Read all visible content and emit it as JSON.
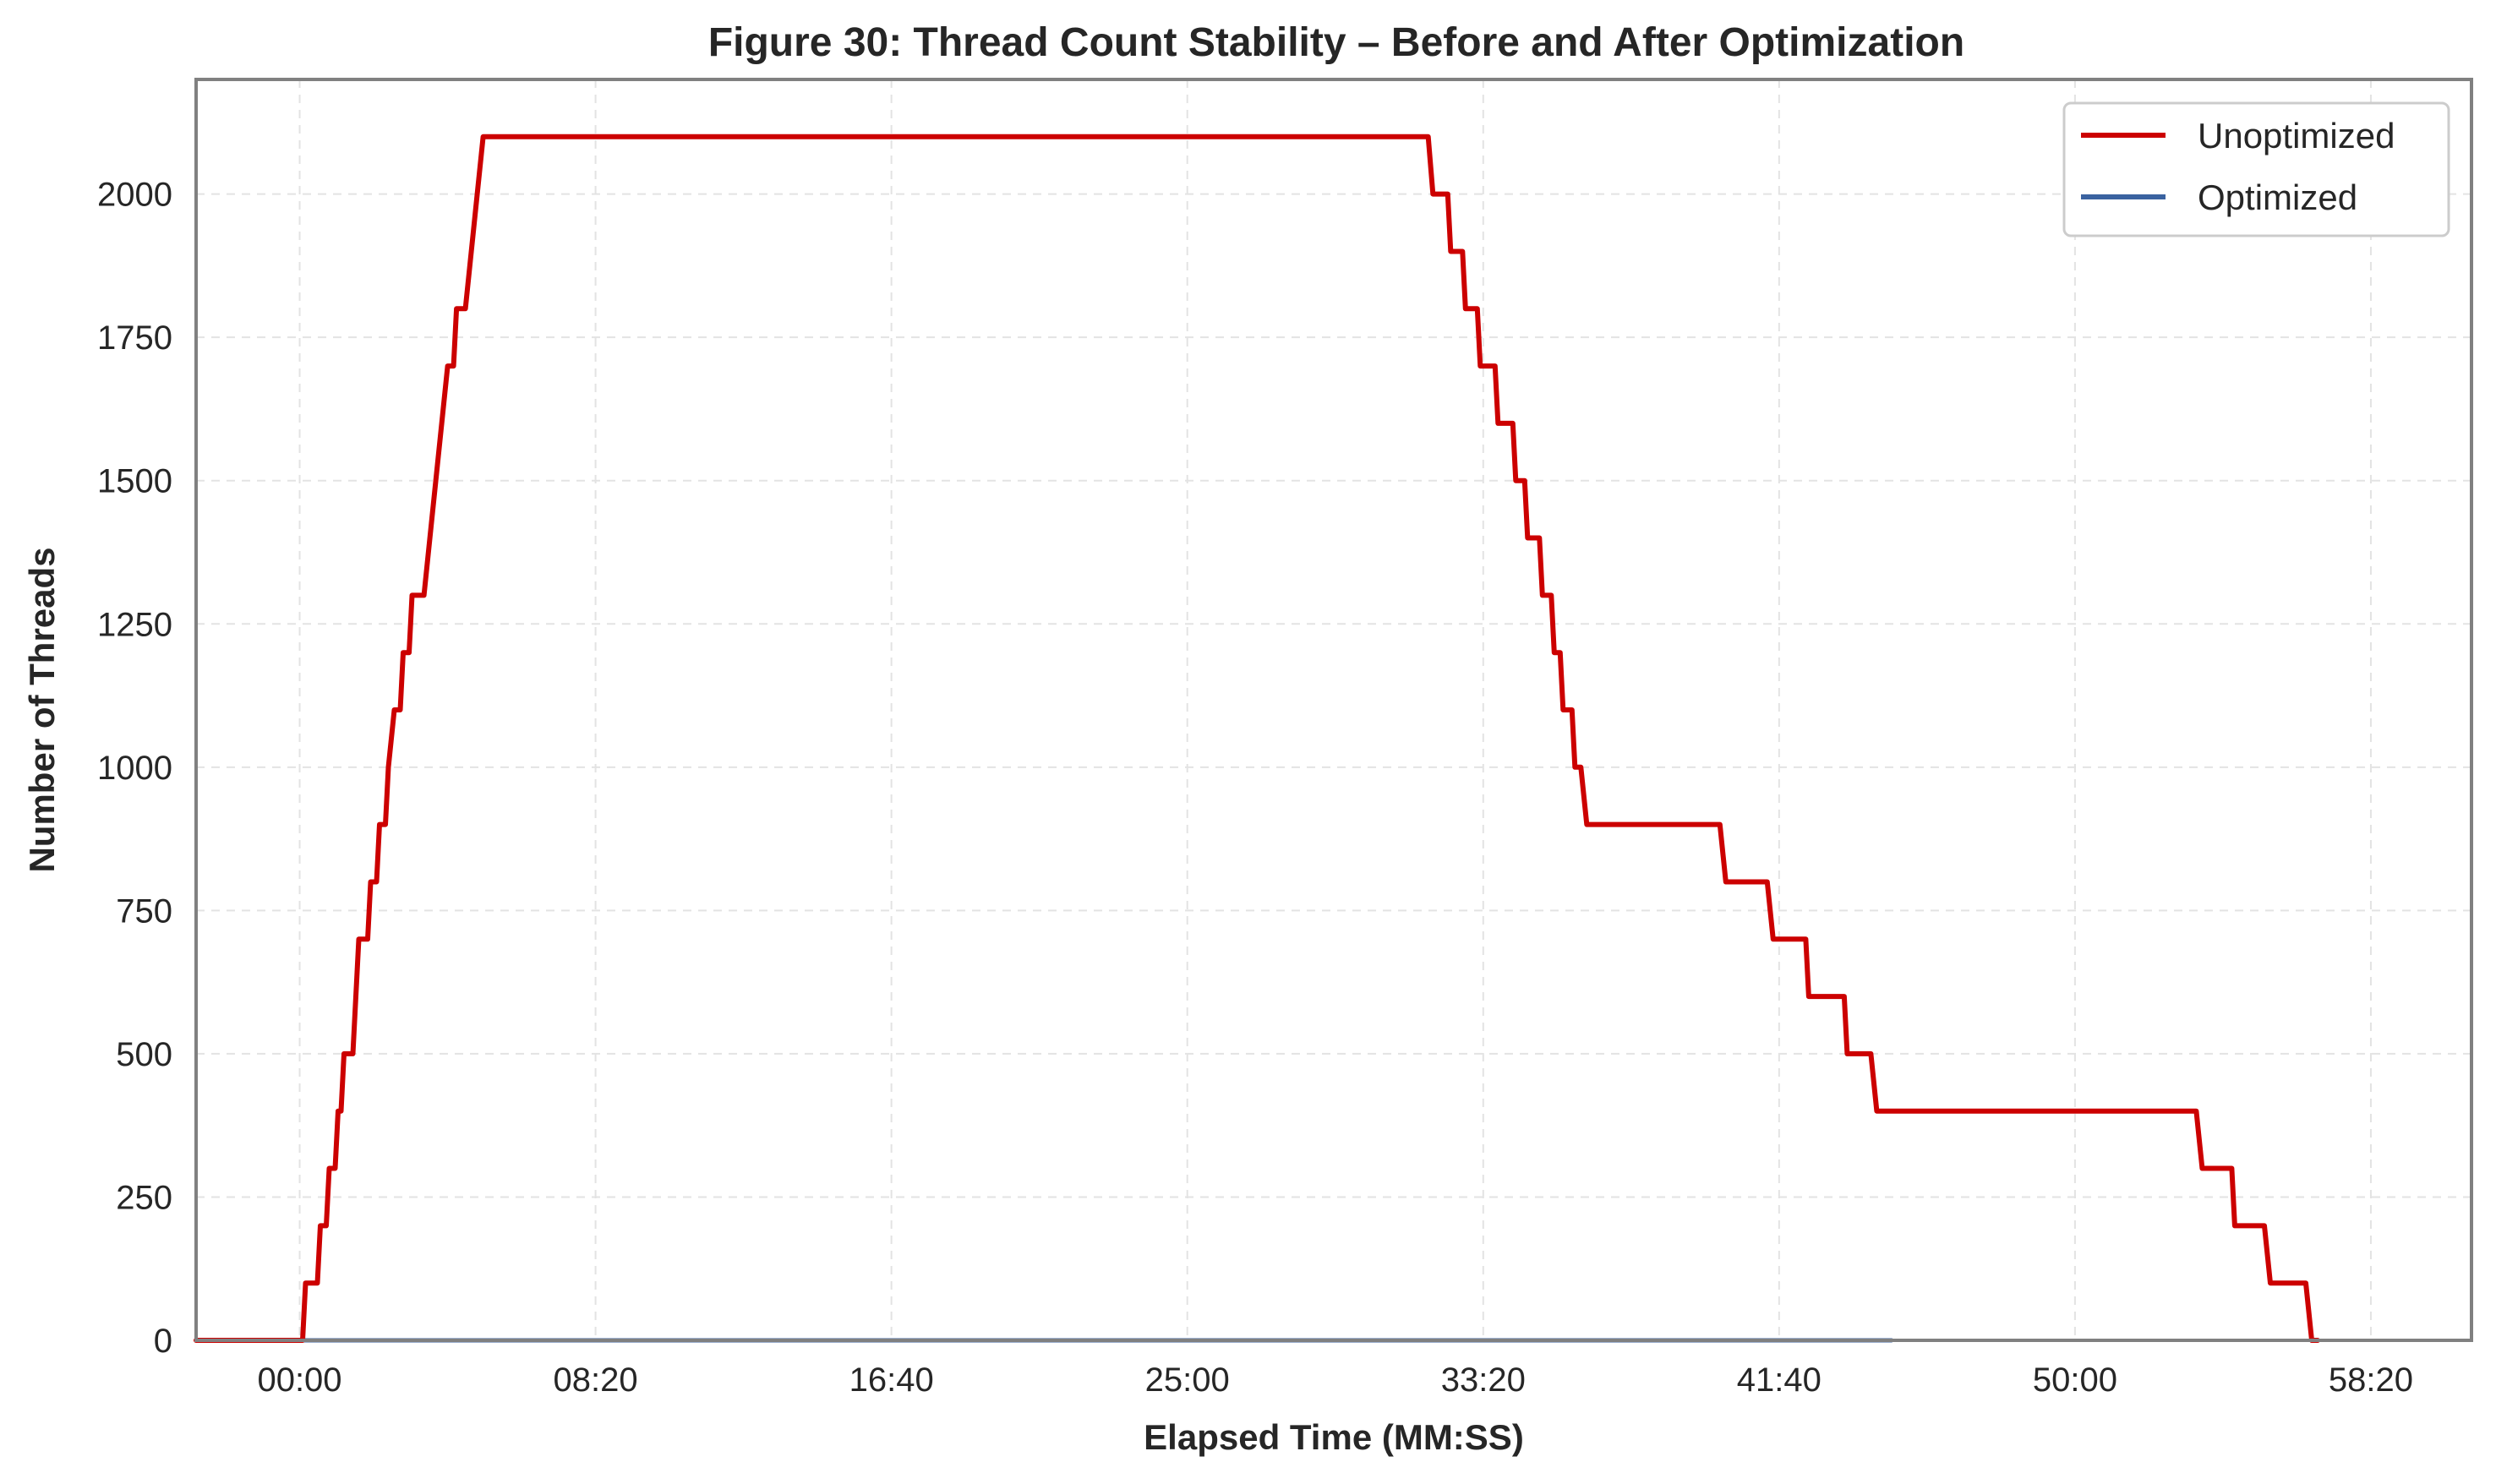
{
  "chart_data": {
    "type": "line",
    "title": "Figure 30: Thread Count Stability – Before and After Optimization",
    "xlabel": "Elapsed Time (MM:SS)",
    "ylabel": "Number of Threads",
    "x_unit": "seconds",
    "xlim": [
      -175,
      3670
    ],
    "ylim": [
      0,
      2200
    ],
    "x_ticks": [
      0,
      500,
      1000,
      1500,
      2000,
      2500,
      3000,
      3500
    ],
    "x_tick_labels": [
      "00:00",
      "08:20",
      "16:40",
      "25:00",
      "33:20",
      "41:40",
      "50:00",
      "58:20"
    ],
    "y_ticks": [
      0,
      250,
      500,
      750,
      1000,
      1250,
      1500,
      1750,
      2000
    ],
    "y_tick_labels": [
      "0",
      "250",
      "500",
      "750",
      "1000",
      "1250",
      "1500",
      "1750",
      "2000"
    ],
    "grid": true,
    "legend_position": "top-right",
    "series": [
      {
        "name": "Unoptimized",
        "color": "#cc0000",
        "style": "step",
        "points": [
          [
            -175,
            0
          ],
          [
            5,
            0
          ],
          [
            10,
            100
          ],
          [
            30,
            100
          ],
          [
            35,
            200
          ],
          [
            45,
            200
          ],
          [
            50,
            300
          ],
          [
            60,
            300
          ],
          [
            65,
            400
          ],
          [
            70,
            400
          ],
          [
            75,
            500
          ],
          [
            90,
            500
          ],
          [
            95,
            600
          ],
          [
            100,
            700
          ],
          [
            115,
            700
          ],
          [
            120,
            800
          ],
          [
            130,
            800
          ],
          [
            135,
            900
          ],
          [
            145,
            900
          ],
          [
            150,
            1000
          ],
          [
            160,
            1100
          ],
          [
            170,
            1100
          ],
          [
            175,
            1200
          ],
          [
            185,
            1200
          ],
          [
            190,
            1300
          ],
          [
            210,
            1300
          ],
          [
            220,
            1400
          ],
          [
            230,
            1500
          ],
          [
            240,
            1600
          ],
          [
            250,
            1700
          ],
          [
            260,
            1700
          ],
          [
            265,
            1800
          ],
          [
            280,
            1800
          ],
          [
            290,
            1900
          ],
          [
            300,
            2000
          ],
          [
            310,
            2100
          ],
          [
            1907,
            2100
          ],
          [
            1915,
            2000
          ],
          [
            1940,
            2000
          ],
          [
            1945,
            1900
          ],
          [
            1965,
            1900
          ],
          [
            1970,
            1800
          ],
          [
            1990,
            1800
          ],
          [
            1995,
            1700
          ],
          [
            2020,
            1700
          ],
          [
            2025,
            1600
          ],
          [
            2050,
            1600
          ],
          [
            2055,
            1500
          ],
          [
            2070,
            1500
          ],
          [
            2075,
            1400
          ],
          [
            2095,
            1400
          ],
          [
            2100,
            1300
          ],
          [
            2115,
            1300
          ],
          [
            2120,
            1200
          ],
          [
            2130,
            1200
          ],
          [
            2135,
            1100
          ],
          [
            2150,
            1100
          ],
          [
            2155,
            1000
          ],
          [
            2165,
            1000
          ],
          [
            2175,
            900
          ],
          [
            2400,
            900
          ],
          [
            2410,
            800
          ],
          [
            2480,
            800
          ],
          [
            2490,
            700
          ],
          [
            2545,
            700
          ],
          [
            2550,
            600
          ],
          [
            2610,
            600
          ],
          [
            2615,
            500
          ],
          [
            2655,
            500
          ],
          [
            2665,
            400
          ],
          [
            3205,
            400
          ],
          [
            3215,
            300
          ],
          [
            3265,
            300
          ],
          [
            3270,
            200
          ],
          [
            3320,
            200
          ],
          [
            3330,
            100
          ],
          [
            3390,
            100
          ],
          [
            3400,
            0
          ],
          [
            3410,
            0
          ]
        ]
      },
      {
        "name": "Optimized",
        "color": "#3a62a0",
        "style": "line",
        "points": [
          [
            -175,
            0
          ],
          [
            2690,
            0
          ]
        ]
      }
    ]
  }
}
